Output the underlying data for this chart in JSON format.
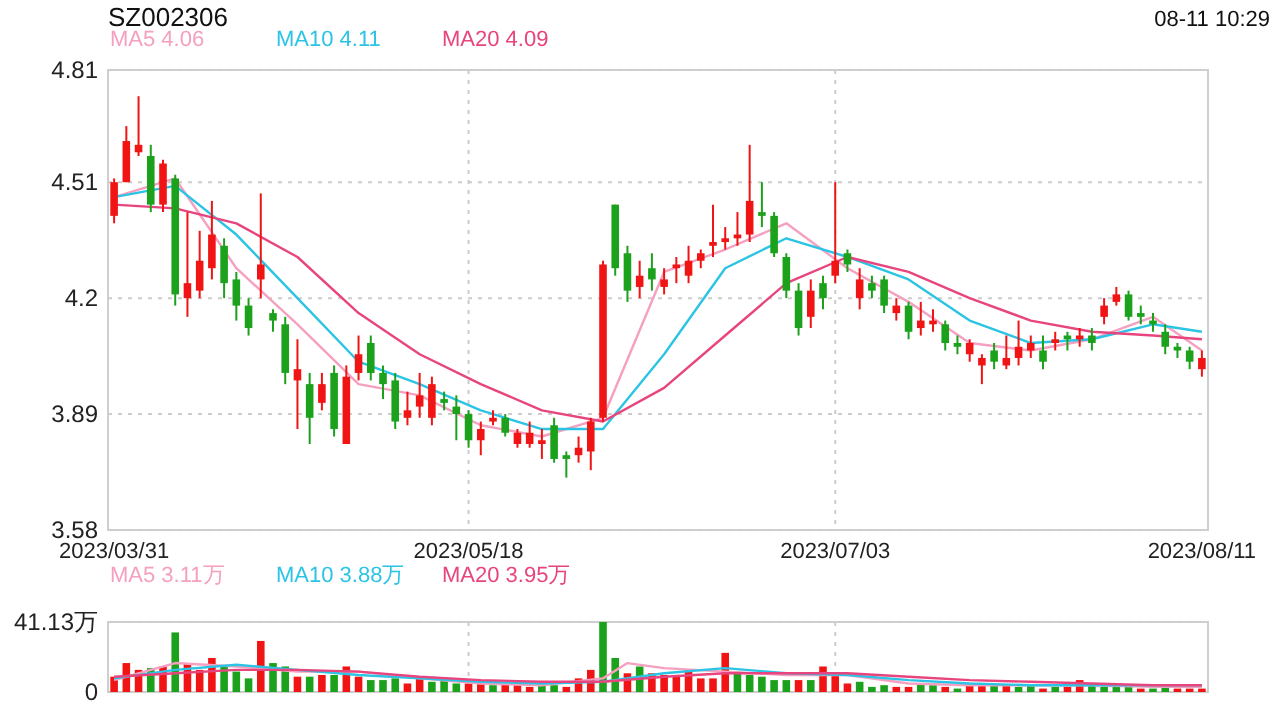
{
  "chart_data": [
    {
      "type": "candlestick",
      "title": "SZ002306",
      "annotations": [
        "08-11 10:29"
      ],
      "categories": [
        "2023/03/31",
        null,
        null,
        null,
        null,
        null,
        null,
        null,
        null,
        null,
        null,
        null,
        null,
        null,
        null,
        null,
        null,
        null,
        null,
        null,
        null,
        null,
        null,
        null,
        null,
        null,
        null,
        null,
        null,
        "2023/05/18",
        null,
        null,
        null,
        null,
        null,
        null,
        null,
        null,
        null,
        null,
        null,
        null,
        null,
        null,
        null,
        null,
        null,
        null,
        null,
        null,
        null,
        null,
        null,
        null,
        null,
        null,
        null,
        null,
        null,
        "2023/07/03",
        null,
        null,
        null,
        null,
        null,
        null,
        null,
        null,
        null,
        null,
        null,
        null,
        null,
        null,
        null,
        null,
        null,
        null,
        null,
        null,
        null,
        null,
        null,
        null,
        null,
        null,
        null,
        null,
        null,
        "2023/08/11"
      ],
      "ohlc": [
        [
          4.42,
          4.52,
          4.4,
          4.51
        ],
        [
          4.51,
          4.66,
          4.51,
          4.62
        ],
        [
          4.59,
          4.74,
          4.58,
          4.61
        ],
        [
          4.58,
          4.61,
          4.43,
          4.45
        ],
        [
          4.45,
          4.57,
          4.43,
          4.56
        ],
        [
          4.52,
          4.53,
          4.18,
          4.21
        ],
        [
          4.2,
          4.43,
          4.15,
          4.24
        ],
        [
          4.22,
          4.38,
          4.2,
          4.3
        ],
        [
          4.28,
          4.46,
          4.25,
          4.37
        ],
        [
          4.34,
          4.36,
          4.2,
          4.24
        ],
        [
          4.25,
          4.27,
          4.14,
          4.18
        ],
        [
          4.18,
          4.2,
          4.1,
          4.12
        ],
        [
          4.25,
          4.48,
          4.2,
          4.29
        ],
        [
          4.16,
          4.17,
          4.11,
          4.14
        ],
        [
          4.13,
          4.15,
          3.97,
          4.0
        ],
        [
          3.98,
          4.09,
          3.85,
          4.01
        ],
        [
          3.97,
          4.0,
          3.81,
          3.88
        ],
        [
          3.92,
          4.0,
          3.9,
          3.97
        ],
        [
          4.0,
          4.02,
          3.83,
          3.85
        ],
        [
          3.81,
          4.02,
          3.81,
          3.99
        ],
        [
          4.0,
          4.1,
          3.98,
          4.05
        ],
        [
          4.08,
          4.1,
          3.98,
          4.0
        ],
        [
          4.0,
          4.02,
          3.93,
          3.97
        ],
        [
          3.98,
          4.0,
          3.85,
          3.87
        ],
        [
          3.88,
          3.95,
          3.86,
          3.9
        ],
        [
          3.91,
          4.0,
          3.88,
          3.94
        ],
        [
          3.88,
          3.99,
          3.86,
          3.97
        ],
        [
          3.93,
          3.95,
          3.9,
          3.92
        ],
        [
          3.91,
          3.94,
          3.82,
          3.89
        ],
        [
          3.89,
          3.9,
          3.8,
          3.82
        ],
        [
          3.82,
          3.87,
          3.78,
          3.85
        ],
        [
          3.87,
          3.9,
          3.86,
          3.88
        ],
        [
          3.88,
          3.89,
          3.83,
          3.84
        ],
        [
          3.81,
          3.85,
          3.8,
          3.84
        ],
        [
          3.81,
          3.87,
          3.8,
          3.84
        ],
        [
          3.81,
          3.85,
          3.77,
          3.82
        ],
        [
          3.86,
          3.88,
          3.76,
          3.77
        ],
        [
          3.78,
          3.79,
          3.72,
          3.77
        ],
        [
          3.78,
          3.83,
          3.76,
          3.8
        ],
        [
          3.79,
          3.88,
          3.74,
          3.87
        ],
        [
          3.88,
          4.3,
          3.87,
          4.29
        ],
        [
          4.45,
          4.45,
          4.26,
          4.28
        ],
        [
          4.32,
          4.34,
          4.19,
          4.22
        ],
        [
          4.23,
          4.3,
          4.2,
          4.26
        ],
        [
          4.28,
          4.32,
          4.22,
          4.25
        ],
        [
          4.23,
          4.28,
          4.21,
          4.25
        ],
        [
          4.28,
          4.31,
          4.24,
          4.29
        ],
        [
          4.26,
          4.34,
          4.24,
          4.3
        ],
        [
          4.3,
          4.33,
          4.28,
          4.32
        ],
        [
          4.34,
          4.45,
          4.31,
          4.35
        ],
        [
          4.35,
          4.39,
          4.33,
          4.36
        ],
        [
          4.36,
          4.43,
          4.34,
          4.37
        ],
        [
          4.37,
          4.61,
          4.35,
          4.46
        ],
        [
          4.43,
          4.51,
          4.39,
          4.42
        ],
        [
          4.42,
          4.43,
          4.31,
          4.32
        ],
        [
          4.31,
          4.32,
          4.2,
          4.22
        ],
        [
          4.22,
          4.24,
          4.1,
          4.12
        ],
        [
          4.15,
          4.25,
          4.12,
          4.22
        ],
        [
          4.24,
          4.26,
          4.17,
          4.2
        ],
        [
          4.26,
          4.51,
          4.24,
          4.3
        ],
        [
          4.32,
          4.33,
          4.27,
          4.29
        ],
        [
          4.2,
          4.28,
          4.17,
          4.25
        ],
        [
          4.24,
          4.26,
          4.2,
          4.22
        ],
        [
          4.25,
          4.26,
          4.16,
          4.18
        ],
        [
          4.16,
          4.2,
          4.14,
          4.18
        ],
        [
          4.18,
          4.19,
          4.09,
          4.11
        ],
        [
          4.12,
          4.19,
          4.1,
          4.14
        ],
        [
          4.13,
          4.17,
          4.11,
          4.14
        ],
        [
          4.13,
          4.14,
          4.06,
          4.08
        ],
        [
          4.08,
          4.1,
          4.05,
          4.07
        ],
        [
          4.05,
          4.09,
          4.03,
          4.08
        ],
        [
          4.02,
          4.05,
          3.97,
          4.04
        ],
        [
          4.06,
          4.08,
          4.01,
          4.03
        ],
        [
          4.02,
          4.1,
          4.01,
          4.04
        ],
        [
          4.04,
          4.14,
          4.02,
          4.07
        ],
        [
          4.06,
          4.1,
          4.04,
          4.08
        ],
        [
          4.06,
          4.1,
          4.01,
          4.03
        ],
        [
          4.08,
          4.11,
          4.06,
          4.09
        ],
        [
          4.1,
          4.11,
          4.06,
          4.09
        ],
        [
          4.09,
          4.12,
          4.07,
          4.1
        ],
        [
          4.1,
          4.12,
          4.06,
          4.08
        ],
        [
          4.15,
          4.2,
          4.13,
          4.18
        ],
        [
          4.19,
          4.23,
          4.18,
          4.21
        ],
        [
          4.21,
          4.22,
          4.14,
          4.15
        ],
        [
          4.16,
          4.18,
          4.13,
          4.15
        ],
        [
          4.14,
          4.16,
          4.11,
          4.13
        ],
        [
          4.11,
          4.13,
          4.05,
          4.07
        ],
        [
          4.07,
          4.08,
          4.04,
          4.06
        ],
        [
          4.06,
          4.07,
          4.01,
          4.03
        ],
        [
          4.01,
          4.06,
          3.99,
          4.04
        ]
      ],
      "colors": [
        "#f01414",
        "#f01414",
        "#f01414",
        "#1ba11b",
        "#f01414",
        "#1ba11b",
        "#f01414",
        "#f01414",
        "#f01414",
        "#1ba11b",
        "#1ba11b",
        "#1ba11b",
        "#f01414",
        "#1ba11b",
        "#1ba11b",
        "#f01414",
        "#1ba11b",
        "#f01414",
        "#1ba11b",
        "#f01414",
        "#f01414",
        "#1ba11b",
        "#1ba11b",
        "#1ba11b",
        "#f01414",
        "#f01414",
        "#f01414",
        "#1ba11b",
        "#1ba11b",
        "#1ba11b",
        "#f01414",
        "#f01414",
        "#1ba11b",
        "#f01414",
        "#f01414",
        "#f01414",
        "#1ba11b",
        "#1ba11b",
        "#f01414",
        "#f01414",
        "#f01414",
        "#1ba11b",
        "#1ba11b",
        "#f01414",
        "#1ba11b",
        "#f01414",
        "#f01414",
        "#f01414",
        "#f01414",
        "#f01414",
        "#f01414",
        "#f01414",
        "#f01414",
        "#1ba11b",
        "#1ba11b",
        "#1ba11b",
        "#1ba11b",
        "#f01414",
        "#1ba11b",
        "#f01414",
        "#1ba11b",
        "#f01414",
        "#1ba11b",
        "#1ba11b",
        "#f01414",
        "#1ba11b",
        "#f01414",
        "#f01414",
        "#1ba11b",
        "#1ba11b",
        "#f01414",
        "#f01414",
        "#1ba11b",
        "#f01414",
        "#f01414",
        "#f01414",
        "#1ba11b",
        "#f01414",
        "#1ba11b",
        "#f01414",
        "#1ba11b",
        "#f01414",
        "#f01414",
        "#1ba11b",
        "#1ba11b",
        "#1ba11b",
        "#1ba11b",
        "#1ba11b",
        "#1ba11b",
        "#f01414"
      ],
      "series": [
        {
          "name": "MA5 4.06",
          "type": "line",
          "color": "#f5a0c0",
          "values": [
            4.47,
            null,
            null,
            null,
            null,
            4.52,
            null,
            null,
            null,
            null,
            4.28,
            null,
            null,
            null,
            null,
            4.13,
            null,
            null,
            null,
            null,
            3.97,
            null,
            null,
            null,
            null,
            3.94,
            null,
            null,
            null,
            null,
            3.86,
            null,
            null,
            null,
            null,
            3.83,
            null,
            null,
            null,
            null,
            3.88,
            null,
            null,
            null,
            null,
            4.27,
            null,
            null,
            null,
            null,
            4.33,
            null,
            null,
            null,
            null,
            4.4,
            null,
            null,
            null,
            null,
            4.28,
            null,
            null,
            null,
            null,
            4.19,
            null,
            null,
            null,
            null,
            4.08,
            null,
            null,
            null,
            null,
            4.06,
            null,
            null,
            null,
            null,
            4.09,
            null,
            null,
            null,
            null,
            4.15,
            null,
            null,
            null,
            4.06
          ]
        },
        {
          "name": "MA10 4.11",
          "type": "line",
          "color": "#2cc4e4",
          "values": [
            4.47,
            null,
            null,
            null,
            null,
            4.5,
            null,
            null,
            null,
            null,
            4.37,
            null,
            null,
            null,
            null,
            4.2,
            null,
            null,
            null,
            null,
            4.03,
            null,
            null,
            null,
            null,
            3.97,
            null,
            null,
            null,
            null,
            3.9,
            null,
            null,
            null,
            null,
            3.85,
            null,
            null,
            null,
            null,
            3.85,
            null,
            null,
            null,
            null,
            4.05,
            null,
            null,
            null,
            null,
            4.28,
            null,
            null,
            null,
            null,
            4.36,
            null,
            null,
            null,
            null,
            4.31,
            null,
            null,
            null,
            null,
            4.25,
            null,
            null,
            null,
            null,
            4.14,
            null,
            null,
            null,
            null,
            4.08,
            null,
            null,
            null,
            null,
            4.09,
            null,
            null,
            null,
            null,
            4.13,
            null,
            null,
            null,
            4.11
          ]
        },
        {
          "name": "MA20 4.09",
          "type": "line",
          "color": "#e8457f",
          "values": [
            4.45,
            null,
            null,
            null,
            null,
            4.44,
            null,
            null,
            null,
            null,
            4.4,
            null,
            null,
            null,
            null,
            4.31,
            null,
            null,
            null,
            null,
            4.16,
            null,
            null,
            null,
            null,
            4.05,
            null,
            null,
            null,
            null,
            3.97,
            null,
            null,
            null,
            null,
            3.9,
            null,
            null,
            null,
            null,
            3.87,
            null,
            null,
            null,
            null,
            3.96,
            null,
            null,
            null,
            null,
            4.1,
            null,
            null,
            null,
            null,
            4.24,
            null,
            null,
            null,
            null,
            4.31,
            null,
            null,
            null,
            null,
            4.27,
            null,
            null,
            null,
            null,
            4.2,
            null,
            null,
            null,
            null,
            4.14,
            null,
            null,
            null,
            null,
            4.11,
            null,
            null,
            null,
            null,
            4.1,
            null,
            null,
            null,
            4.09
          ]
        }
      ],
      "ylim": [
        3.58,
        4.81
      ],
      "yticks": [
        4.81,
        4.51,
        4.2,
        3.89,
        3.58
      ],
      "grid": true,
      "legend": "top left"
    },
    {
      "type": "bar",
      "categories": [
        "2023/03/31",
        null,
        null,
        null,
        null,
        null,
        null,
        null,
        null,
        null,
        null,
        null,
        null,
        null,
        null,
        null,
        null,
        null,
        null,
        null,
        null,
        null,
        null,
        null,
        null,
        null,
        null,
        null,
        null,
        "2023/05/18",
        null,
        null,
        null,
        null,
        null,
        null,
        null,
        null,
        null,
        null,
        null,
        null,
        null,
        null,
        null,
        null,
        null,
        null,
        null,
        null,
        null,
        null,
        null,
        null,
        null,
        null,
        null,
        null,
        null,
        "2023/07/03",
        null,
        null,
        null,
        null,
        null,
        null,
        null,
        null,
        null,
        null,
        null,
        null,
        null,
        null,
        null,
        null,
        null,
        null,
        null,
        null,
        null,
        null,
        null,
        null,
        null,
        null,
        null,
        null,
        null,
        "2023/08/11"
      ],
      "tick_labels": "y",
      "values": [
        9,
        17,
        13,
        14,
        15,
        35,
        17,
        13,
        20,
        15,
        12,
        8,
        30,
        17,
        15,
        9,
        9,
        10,
        10,
        15,
        9,
        7,
        7,
        8,
        5,
        9,
        6,
        8,
        5,
        5,
        5,
        4,
        5,
        4,
        3,
        6,
        4,
        3,
        8,
        13,
        41.13,
        20,
        11,
        15,
        11,
        10,
        10,
        13,
        8,
        8,
        23,
        12,
        10,
        9,
        7,
        7,
        7,
        7,
        15,
        10,
        5,
        6,
        3,
        4,
        3,
        3,
        5,
        4,
        3,
        2,
        5,
        5,
        4,
        4,
        3,
        4,
        2,
        3,
        3,
        7,
        5,
        3,
        3,
        3,
        2,
        2,
        3,
        2,
        2,
        2
      ],
      "colors": [
        "#f01414",
        "#f01414",
        "#f01414",
        "#1ba11b",
        "#f01414",
        "#1ba11b",
        "#f01414",
        "#f01414",
        "#f01414",
        "#1ba11b",
        "#1ba11b",
        "#1ba11b",
        "#f01414",
        "#1ba11b",
        "#1ba11b",
        "#f01414",
        "#1ba11b",
        "#f01414",
        "#1ba11b",
        "#f01414",
        "#f01414",
        "#1ba11b",
        "#1ba11b",
        "#1ba11b",
        "#f01414",
        "#f01414",
        "#1ba11b",
        "#1ba11b",
        "#1ba11b",
        "#f01414",
        "#f01414",
        "#1ba11b",
        "#f01414",
        "#f01414",
        "#f01414",
        "#1ba11b",
        "#1ba11b",
        "#f01414",
        "#f01414",
        "#f01414",
        "#1ba11b",
        "#1ba11b",
        "#f01414",
        "#1ba11b",
        "#f01414",
        "#f01414",
        "#f01414",
        "#f01414",
        "#f01414",
        "#f01414",
        "#f01414",
        "#1ba11b",
        "#1ba11b",
        "#1ba11b",
        "#1ba11b",
        "#1ba11b",
        "#f01414",
        "#1ba11b",
        "#f01414",
        "#f01414",
        "#f01414",
        "#1ba11b",
        "#1ba11b",
        "#1ba11b",
        "#f01414",
        "#f01414",
        "#1ba11b",
        "#1ba11b",
        "#f01414",
        "#1ba11b",
        "#f01414",
        "#f01414",
        "#1ba11b",
        "#f01414",
        "#1ba11b",
        "#1ba11b",
        "#f01414",
        "#1ba11b",
        "#f01414",
        "#f01414",
        "#1ba11b",
        "#1ba11b",
        "#1ba11b",
        "#1ba11b",
        "#f01414",
        "#1ba11b",
        "#1ba11b",
        "#f01414",
        "#f01414",
        "#f01414"
      ],
      "series": [
        {
          "name": "MA5 3.11万",
          "type": "line",
          "color": "#f5a0c0",
          "values": [
            7,
            null,
            null,
            null,
            null,
            17,
            null,
            null,
            null,
            null,
            15,
            null,
            null,
            null,
            null,
            12,
            null,
            null,
            null,
            null,
            12,
            null,
            null,
            null,
            null,
            8,
            null,
            null,
            null,
            null,
            5,
            null,
            null,
            null,
            null,
            4,
            null,
            null,
            null,
            null,
            8,
            null,
            17,
            null,
            null,
            14,
            null,
            null,
            null,
            null,
            12,
            null,
            null,
            null,
            null,
            10,
            null,
            null,
            null,
            null,
            10,
            null,
            null,
            null,
            null,
            5,
            null,
            null,
            null,
            null,
            4,
            null,
            null,
            null,
            null,
            4,
            null,
            null,
            null,
            null,
            4,
            null,
            null,
            null,
            null,
            3,
            null,
            null,
            null,
            3
          ]
        },
        {
          "name": "MA10 3.88万",
          "type": "line",
          "color": "#2cc4e4",
          "values": [
            8,
            null,
            null,
            null,
            null,
            13,
            null,
            null,
            null,
            null,
            16,
            null,
            null,
            null,
            null,
            13,
            null,
            null,
            null,
            null,
            10,
            null,
            null,
            null,
            null,
            8,
            null,
            null,
            null,
            null,
            6,
            null,
            null,
            null,
            null,
            5,
            null,
            null,
            null,
            null,
            6,
            null,
            null,
            null,
            null,
            11,
            null,
            null,
            null,
            null,
            14,
            null,
            null,
            null,
            null,
            11,
            null,
            null,
            null,
            null,
            10,
            null,
            null,
            null,
            null,
            7,
            null,
            null,
            null,
            null,
            5,
            null,
            null,
            null,
            null,
            4,
            null,
            null,
            null,
            null,
            4,
            null,
            null,
            null,
            null,
            4,
            null,
            null,
            null,
            4
          ]
        },
        {
          "name": "MA20 3.95万",
          "type": "line",
          "color": "#e8457f",
          "values": [
            9,
            null,
            null,
            null,
            null,
            11,
            null,
            null,
            null,
            null,
            13,
            null,
            null,
            null,
            null,
            13,
            null,
            null,
            null,
            null,
            12,
            null,
            null,
            null,
            null,
            9,
            null,
            null,
            null,
            null,
            7,
            null,
            null,
            null,
            null,
            6,
            null,
            null,
            null,
            null,
            6,
            null,
            null,
            null,
            null,
            9,
            null,
            null,
            null,
            null,
            11,
            null,
            null,
            null,
            null,
            11,
            null,
            null,
            null,
            null,
            11,
            null,
            null,
            null,
            null,
            9,
            null,
            null,
            null,
            null,
            7,
            null,
            null,
            null,
            null,
            6,
            null,
            null,
            null,
            null,
            5,
            null,
            null,
            null,
            null,
            4,
            null,
            null,
            null,
            4
          ]
        }
      ],
      "ylim": [
        0,
        41.13
      ],
      "yticks": [
        {
          "value": 41.13,
          "label": "41.13万"
        },
        0
      ],
      "grid": true,
      "legend": "top left"
    }
  ]
}
